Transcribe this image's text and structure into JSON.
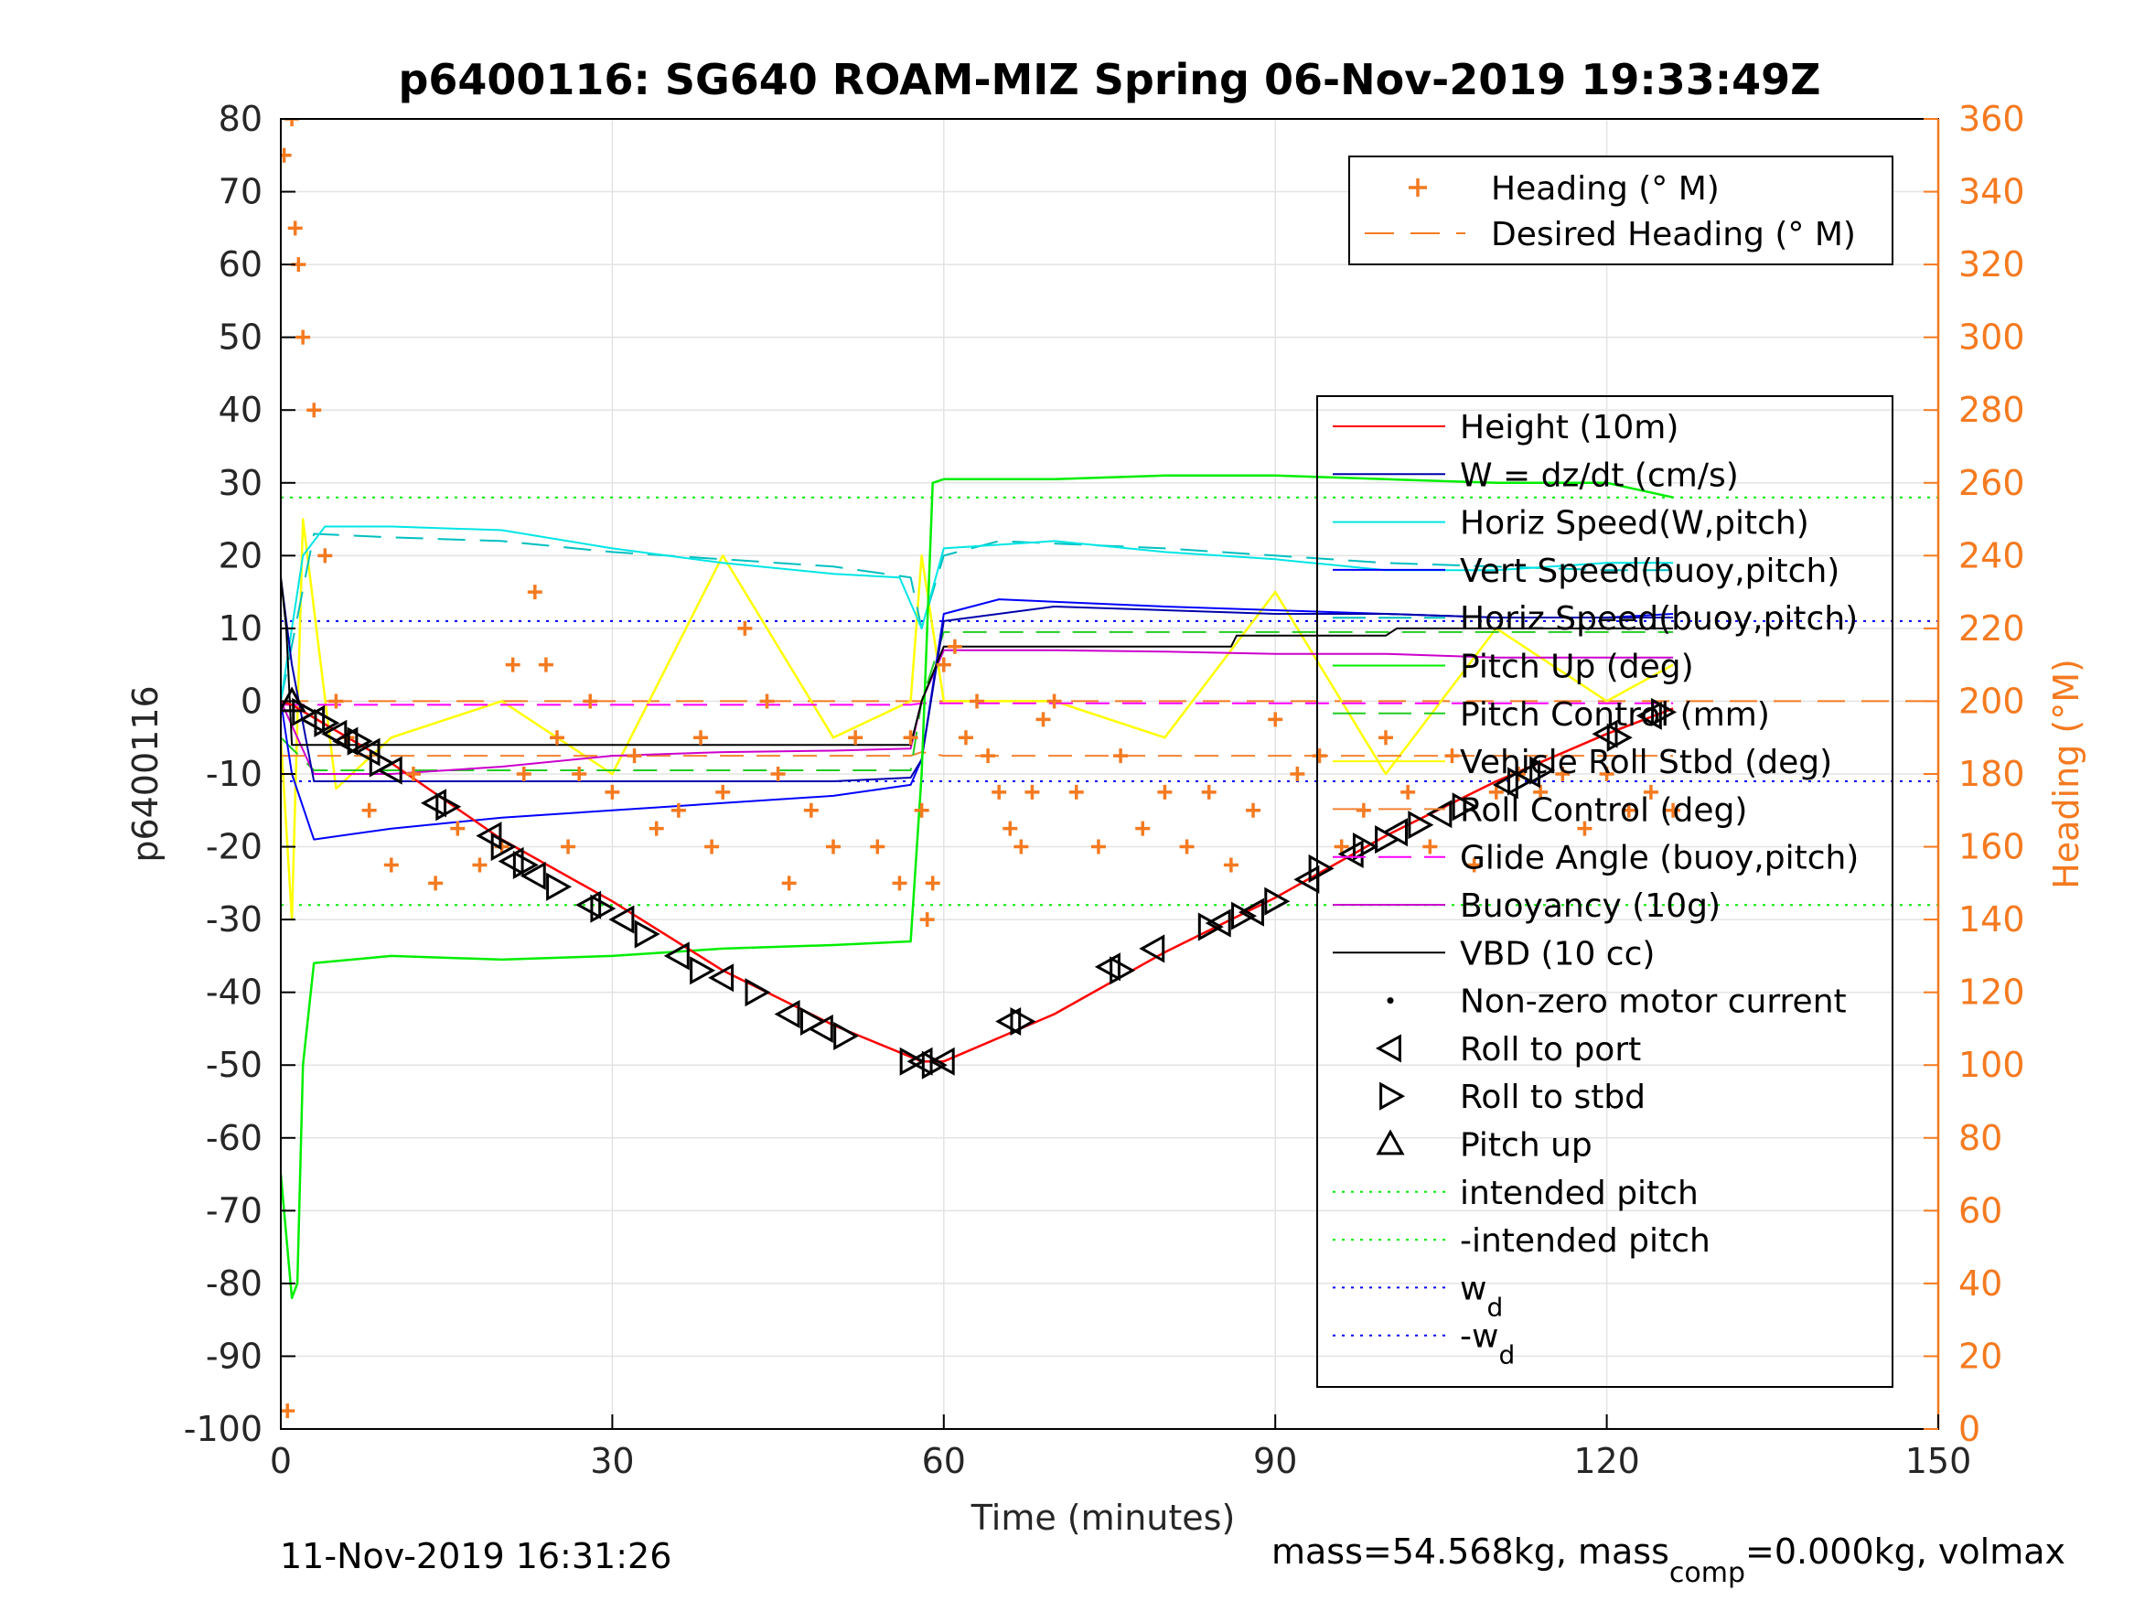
{
  "figure": {
    "footer_left": "11-Nov-2019 16:31:26",
    "footer_right_prefix": "mass=54.568kg, mass",
    "footer_right_sub": "comp",
    "footer_right_suffix": "=0.000kg, volmax"
  },
  "chart_data": {
    "type": "line",
    "title": "p6400116: SG640 ROAM-MIZ Spring 06-Nov-2019 19:33:49Z",
    "xlabel": "Time (minutes)",
    "ylabel": "p6400116",
    "ylabel_right": "Heading (°M)",
    "xlim": [
      0,
      150
    ],
    "ylim": [
      -100,
      80
    ],
    "ylim_right": [
      0,
      360
    ],
    "xticks": [
      0,
      30,
      60,
      90,
      120,
      150
    ],
    "yticks": [
      -100,
      -90,
      -80,
      -70,
      -60,
      -50,
      -40,
      -30,
      -20,
      -10,
      0,
      10,
      20,
      30,
      40,
      50,
      60,
      70,
      80
    ],
    "yticks_right": [
      0,
      20,
      40,
      60,
      80,
      100,
      120,
      140,
      160,
      180,
      200,
      220,
      240,
      260,
      280,
      300,
      320,
      340,
      360
    ],
    "grid": true,
    "colors": {
      "height": "#ff0000",
      "w": "#0000aa",
      "horiz_w": "#00e5e5",
      "vert_buoy": "#0000ff",
      "horiz_buoy": "#00bfbf",
      "pitch_up": "#00ee00",
      "pitch_control": "#22cc22",
      "roll": "#ffff00",
      "roll_control": "#f58231",
      "glide": "#ff00ff",
      "buoyancy": "#cc00cc",
      "vbd": "#000000",
      "heading": "#f47a20",
      "intended": "#00ee00",
      "wd": "#0000ff"
    },
    "legend_heading": [
      {
        "name": "Heading (° M)"
      },
      {
        "name": "Desired Heading (° M)"
      }
    ],
    "legend_main": [
      {
        "name": "Height (10m)",
        "style": "line",
        "color": "#ff0000"
      },
      {
        "name": "W = dz/dt (cm/s)",
        "style": "line",
        "color": "#0000aa"
      },
      {
        "name": "Horiz Speed(W,pitch)",
        "style": "line",
        "color": "#00e5e5"
      },
      {
        "name": "Vert Speed(buoy,pitch)",
        "style": "line",
        "color": "#0000ff"
      },
      {
        "name": "Horiz Speed(buoy,pitch)",
        "style": "dash",
        "color": "#00bfbf"
      },
      {
        "name": "Pitch Up (deg)",
        "style": "line",
        "color": "#00ee00"
      },
      {
        "name": "Pitch Control (mm)",
        "style": "dash",
        "color": "#22cc22"
      },
      {
        "name": "Vehicle Roll Stbd (deg)",
        "style": "line",
        "color": "#ffff00"
      },
      {
        "name": "Roll Control (deg)",
        "style": "dash",
        "color": "#f58231"
      },
      {
        "name": "Glide Angle (buoy,pitch)",
        "style": "dash",
        "color": "#ff00ff"
      },
      {
        "name": "Buoyancy (10g)",
        "style": "line",
        "color": "#cc00cc"
      },
      {
        "name": "VBD (10 cc)",
        "style": "line",
        "color": "#000000"
      },
      {
        "name": "Non-zero motor current",
        "style": "dot",
        "color": "#000000"
      },
      {
        "name": "Roll to port",
        "style": "tri-left",
        "color": "#000000"
      },
      {
        "name": "Roll to stbd",
        "style": "tri-right",
        "color": "#000000"
      },
      {
        "name": "Pitch up",
        "style": "tri-up",
        "color": "#000000"
      },
      {
        "name": "intended pitch",
        "style": "dotted",
        "color": "#00ee00"
      },
      {
        "name": "-intended pitch",
        "style": "dotted",
        "color": "#00ee00"
      },
      {
        "name": "w",
        "sub": "d",
        "style": "dotted",
        "color": "#0000ff"
      },
      {
        "name": "-w",
        "sub": "d",
        "style": "dotted",
        "color": "#0000ff"
      }
    ],
    "reference_lines": {
      "intended_pitch": 28,
      "neg_intended_pitch": -28,
      "w_d": 11,
      "neg_w_d": -11
    },
    "series": {
      "height": {
        "x": [
          0,
          1,
          10,
          20,
          30,
          40,
          50,
          58,
          60,
          70,
          80,
          90,
          100,
          110,
          120,
          126
        ],
        "y": [
          0,
          -0.5,
          -8.5,
          -19,
          -27.5,
          -37,
          -44.5,
          -49.5,
          -49.5,
          -43,
          -34.5,
          -27,
          -18.5,
          -11,
          -4.5,
          -1
        ]
      },
      "w": {
        "x": [
          0,
          1,
          3,
          10,
          20,
          30,
          40,
          50,
          57,
          58,
          60,
          70,
          80,
          90,
          100,
          110,
          120,
          126
        ],
        "y": [
          17,
          5,
          -11,
          -11,
          -11,
          -11,
          -11,
          -11,
          -10.5,
          -8,
          11,
          13,
          12.5,
          12,
          12,
          11.5,
          11.5,
          11.5
        ]
      },
      "horiz_w": {
        "x": [
          0,
          2,
          4,
          10,
          20,
          30,
          40,
          50,
          56,
          58,
          60,
          70,
          80,
          90,
          100,
          110,
          120,
          126
        ],
        "y": [
          0,
          20,
          24,
          24,
          23.5,
          21,
          19,
          17.5,
          17,
          10,
          21,
          22,
          20.5,
          19.5,
          18,
          18,
          19,
          19
        ]
      },
      "vert_buoy": {
        "x": [
          0,
          1,
          3,
          10,
          20,
          30,
          40,
          50,
          57,
          58,
          60,
          65,
          80,
          90,
          100,
          110,
          120,
          126
        ],
        "y": [
          0,
          -10,
          -19,
          -17.5,
          -16,
          -15,
          -14,
          -13,
          -11.5,
          -8,
          12,
          14,
          13,
          12.5,
          12,
          11.5,
          11.5,
          12
        ]
      },
      "horiz_buoy": {
        "x": [
          0,
          3,
          10,
          20,
          30,
          40,
          50,
          57,
          58,
          60,
          65,
          80,
          90,
          100,
          110,
          120,
          126
        ],
        "y": [
          0,
          23,
          22.5,
          22,
          20.5,
          19.5,
          18.5,
          17,
          10,
          20,
          22,
          21,
          20,
          19,
          18.5,
          18,
          18
        ]
      },
      "pitch_up": {
        "x": [
          0,
          1,
          1.5,
          2,
          3,
          10,
          20,
          30,
          40,
          50,
          57,
          58,
          59,
          60,
          70,
          80,
          90,
          100,
          110,
          120,
          126
        ],
        "y": [
          -65,
          -82,
          -80,
          -50,
          -36,
          -35,
          -35.5,
          -35,
          -34,
          -33.5,
          -33,
          -10,
          30,
          30.5,
          30.5,
          31,
          31,
          30.5,
          30,
          30,
          28
        ]
      },
      "pitch_control": {
        "x": [
          0,
          3,
          10,
          30,
          57,
          58,
          60,
          80,
          100,
          126
        ],
        "y": [
          -5,
          -9.5,
          -9.5,
          -9.5,
          -9.5,
          0,
          9.5,
          9.5,
          9.5,
          9.5
        ]
      },
      "roll": {
        "x": [
          0,
          1,
          2,
          5,
          10,
          20,
          30,
          40,
          50,
          57,
          58,
          60,
          70,
          80,
          90,
          100,
          110,
          120,
          126
        ],
        "y": [
          -5,
          -30,
          25,
          -12,
          -5,
          0,
          -10,
          20,
          -5,
          0,
          20,
          0,
          0,
          -5,
          15,
          -10,
          10,
          0,
          5
        ]
      },
      "roll_control": {
        "x": [
          0,
          5,
          10,
          20,
          40,
          57,
          58,
          60,
          80,
          100,
          126
        ],
        "y": [
          -7.5,
          -7.5,
          -7.5,
          -7.5,
          -7.5,
          -7.5,
          -7,
          -7.5,
          -7.5,
          -7.5,
          -7.5
        ]
      },
      "glide": {
        "x": [
          0,
          5,
          10,
          30,
          57,
          58,
          60,
          80,
          100,
          126
        ],
        "y": [
          -0.5,
          -0.5,
          -0.5,
          -0.5,
          -0.5,
          -0.3,
          -0.3,
          -0.3,
          -0.3,
          -0.3
        ]
      },
      "buoyancy": {
        "x": [
          0,
          3,
          10,
          20,
          30,
          40,
          50,
          57,
          58,
          60,
          70,
          80,
          90,
          100,
          110,
          120,
          126
        ],
        "y": [
          0,
          -10,
          -10,
          -9,
          -7.5,
          -7,
          -6.8,
          -6.5,
          0,
          7,
          7,
          6.8,
          6.5,
          6.5,
          6,
          6,
          6
        ]
      },
      "vbd": {
        "x": [
          0,
          0.5,
          1,
          3,
          10,
          20,
          30,
          40,
          50,
          57,
          58,
          60,
          70,
          80,
          86,
          86.5,
          100,
          101,
          110,
          120,
          126
        ],
        "y": [
          17,
          10,
          -6,
          -6,
          -6,
          -6,
          -6,
          -6,
          -6,
          -6,
          0,
          7.5,
          7.5,
          7.5,
          7.5,
          9,
          9,
          10,
          10,
          10,
          10
        ]
      },
      "heading": {
        "x": [
          0.3,
          0.6,
          1,
          1.3,
          1.6,
          2,
          3,
          4,
          5,
          6,
          8,
          10,
          12,
          14,
          16,
          18,
          20,
          21,
          22,
          23,
          24,
          25,
          26,
          27,
          28,
          30,
          32,
          34,
          36,
          38,
          39,
          40,
          42,
          44,
          45,
          46,
          48,
          50,
          52,
          54,
          56,
          57,
          58,
          58.5,
          59,
          60,
          61,
          62,
          63,
          64,
          65,
          66,
          67,
          68,
          69,
          70,
          72,
          74,
          76,
          78,
          80,
          82,
          84,
          86,
          88,
          90,
          92,
          94,
          96,
          98,
          100,
          102,
          104,
          106,
          108,
          110,
          112,
          114,
          116,
          118,
          120,
          122,
          124,
          126
        ],
        "y": [
          350,
          5,
          360,
          330,
          320,
          300,
          280,
          240,
          200,
          190,
          170,
          155,
          180,
          150,
          165,
          155,
          160,
          210,
          180,
          230,
          210,
          190,
          160,
          180,
          200,
          175,
          185,
          165,
          170,
          190,
          160,
          175,
          220,
          200,
          180,
          150,
          170,
          160,
          190,
          160,
          150,
          190,
          170,
          140,
          150,
          210,
          215,
          190,
          200,
          185,
          175,
          165,
          160,
          175,
          195,
          200,
          175,
          160,
          185,
          165,
          175,
          160,
          175,
          155,
          170,
          195,
          180,
          185,
          160,
          170,
          190,
          175,
          160,
          185,
          155,
          175,
          180,
          175,
          180,
          165,
          180,
          170,
          175,
          170
        ]
      },
      "desired_heading": {
        "x": [
          0,
          150
        ],
        "y": [
          200,
          200
        ]
      },
      "roll_port_markers": {
        "x": [
          3,
          5,
          6,
          8,
          10,
          14,
          19,
          21,
          23,
          28,
          31,
          36,
          40,
          46,
          49,
          58,
          60,
          66,
          75,
          79,
          85,
          88,
          93,
          97,
          101,
          105,
          111,
          113,
          120,
          124
        ],
        "y": [
          -2.5,
          -4.5,
          -5.5,
          -7,
          -9.5,
          -14,
          -18.5,
          -22,
          -24,
          -28,
          -30,
          -35,
          -38,
          -43,
          -45,
          -49.5,
          -49.5,
          -44,
          -36.5,
          -34,
          -30.5,
          -29,
          -24.5,
          -21,
          -18,
          -15.5,
          -11.5,
          -10,
          -4.5,
          -2
        ]
      },
      "roll_stbd_markers": {
        "x": [
          2,
          4,
          7,
          9,
          15,
          20,
          22,
          25,
          29,
          33,
          38,
          43,
          48,
          51,
          57,
          59,
          67,
          76,
          84,
          87,
          90,
          94,
          98,
          100,
          103,
          107,
          112,
          114,
          121,
          125
        ],
        "y": [
          -1.5,
          -3,
          -5.5,
          -8.5,
          -14.5,
          -20,
          -22.5,
          -25.5,
          -28.5,
          -32,
          -37,
          -40,
          -44,
          -46,
          -49.5,
          -50,
          -44,
          -37,
          -31,
          -29.5,
          -27.5,
          -23,
          -20,
          -19,
          -17,
          -14.5,
          -11,
          -9.5,
          -5,
          -1.5
        ]
      },
      "pitch_up_markers": {
        "x": [
          1
        ],
        "y": [
          0
        ]
      }
    }
  }
}
